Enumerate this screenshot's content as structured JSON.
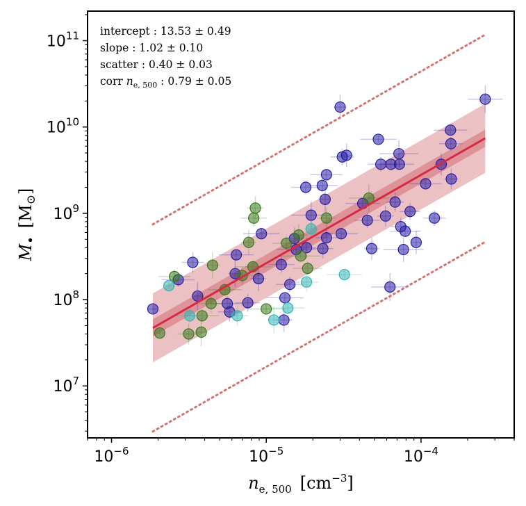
{
  "chart_data": {
    "type": "scatter",
    "x_scale": "log",
    "y_scale": "log",
    "xlim": [
      7e-07,
      0.0004
    ],
    "ylim": [
      2500000.0,
      220000000000.0
    ],
    "xlabel": {
      "symbol": "n",
      "sub": "e, 500",
      "unit_pre": "[cm",
      "unit_exp": "−3",
      "unit_post": "]"
    },
    "ylabel": {
      "symbol": "M",
      "sub": "•",
      "unit_pre": "[M",
      "unit_sub": "⊙",
      "unit_post": "]"
    },
    "xticks": [
      {
        "value": 1e-06,
        "base": "10",
        "exp": "−6"
      },
      {
        "value": 1e-05,
        "base": "10",
        "exp": "−5"
      },
      {
        "value": 0.0001,
        "base": "10",
        "exp": "−4"
      }
    ],
    "yticks": [
      {
        "value": 10000000.0,
        "base": "10",
        "exp": "7"
      },
      {
        "value": 100000000.0,
        "base": "10",
        "exp": "8"
      },
      {
        "value": 1000000000.0,
        "base": "10",
        "exp": "9"
      },
      {
        "value": 10000000000.0,
        "base": "10",
        "exp": "10"
      },
      {
        "value": 100000000000.0,
        "base": "10",
        "exp": "11"
      }
    ],
    "annotations": [
      {
        "label": "intercept",
        "value": "13.53 ± 0.49"
      },
      {
        "label": "slope",
        "value": "1.02 ± 0.10"
      },
      {
        "label": "scatter",
        "value": "0.40 ± 0.03"
      },
      {
        "label": "corr n",
        "sub": "e, 500",
        "value": "0.79 ± 0.05"
      }
    ],
    "fit": {
      "x_range": [
        1.85e-06,
        0.00026
      ],
      "y_start": 47000000.0,
      "y_end": 7400000000.0,
      "inner_band_dex": 0.1,
      "outer_band_dex": 0.4,
      "outer_lines_dex": 1.2,
      "line_color": "#d62a43",
      "band_color": "#cc5c63",
      "dotted_color": "#d4726f"
    },
    "series": [
      {
        "name": "blue",
        "color": "#2a1fa6",
        "points": [
          [
            1.85e-06,
            78000000.0
          ],
          [
            2.7e-06,
            170000000.0
          ],
          [
            3.35e-06,
            270000000.0
          ],
          [
            3.6e-06,
            110000000.0
          ],
          [
            5.6e-06,
            90000000.0
          ],
          [
            5.8e-06,
            72000000.0
          ],
          [
            6.3e-06,
            200000000.0
          ],
          [
            6.4e-06,
            330000000.0
          ],
          [
            7.6e-06,
            92000000.0
          ],
          [
            8.9e-06,
            175000000.0
          ],
          [
            9.3e-06,
            580000000.0
          ],
          [
            1.25e-05,
            255000000.0
          ],
          [
            1.3e-05,
            58000000.0
          ],
          [
            1.32e-05,
            105000000.0
          ],
          [
            1.42e-05,
            150000000.0
          ],
          [
            1.52e-05,
            510000000.0
          ],
          [
            1.56e-05,
            380000000.0
          ],
          [
            1.8e-05,
            2000000000.0
          ],
          [
            1.82e-05,
            400000000.0
          ],
          [
            1.95e-05,
            950000000.0
          ],
          [
            2.3e-05,
            2100000000.0
          ],
          [
            2.32e-05,
            390000000.0
          ],
          [
            2.4e-05,
            1450000000.0
          ],
          [
            2.45e-05,
            2800000000.0
          ],
          [
            2.45e-05,
            520000000.0
          ],
          [
            3e-05,
            17000000000.0
          ],
          [
            3.05e-05,
            580000000.0
          ],
          [
            3.1e-05,
            4500000000.0
          ],
          [
            3.3e-05,
            4700000000.0
          ],
          [
            4.2e-05,
            1300000000.0
          ],
          [
            4.5e-05,
            830000000.0
          ],
          [
            4.8e-05,
            390000000.0
          ],
          [
            5.3e-05,
            7200000000.0
          ],
          [
            5.5e-05,
            3700000000.0
          ],
          [
            5.9e-05,
            930000000.0
          ],
          [
            6.3e-05,
            140000000.0
          ],
          [
            6.4e-05,
            3700000000.0
          ],
          [
            6.8e-05,
            1350000000.0
          ],
          [
            7.2e-05,
            4900000000.0
          ],
          [
            7.25e-05,
            3700000000.0
          ],
          [
            7.4e-05,
            700000000.0
          ],
          [
            7.7e-05,
            380000000.0
          ],
          [
            7.9e-05,
            620000000.0
          ],
          [
            8.5e-05,
            1050000000.0
          ],
          [
            9.3e-05,
            460000000.0
          ],
          [
            0.000107,
            2200000000.0
          ],
          [
            0.000122,
            880000000.0
          ],
          [
            0.000135,
            3700000000.0
          ],
          [
            0.000155,
            9200000000.0
          ],
          [
            0.000156,
            6400000000.0
          ],
          [
            0.000157,
            2500000000.0
          ],
          [
            0.00026,
            21000000000.0
          ]
        ]
      },
      {
        "name": "green",
        "color": "#3a7a1e",
        "points": [
          [
            2.05e-06,
            41000000.0
          ],
          [
            2.55e-06,
            185000000.0
          ],
          [
            3.15e-06,
            40000000.0
          ],
          [
            3.8e-06,
            42000000.0
          ],
          [
            3.85e-06,
            65000000.0
          ],
          [
            4.4e-06,
            90000000.0
          ],
          [
            4.5e-06,
            250000000.0
          ],
          [
            5.4e-06,
            130000000.0
          ],
          [
            7e-06,
            190000000.0
          ],
          [
            7.7e-06,
            460000000.0
          ],
          [
            8.2e-06,
            240000000.0
          ],
          [
            8.3e-06,
            880000000.0
          ],
          [
            8.5e-06,
            1150000000.0
          ],
          [
            1e-05,
            78000000.0
          ],
          [
            1.35e-05,
            450000000.0
          ],
          [
            1.62e-05,
            560000000.0
          ],
          [
            1.67e-05,
            320000000.0
          ],
          [
            1.85e-05,
            230000000.0
          ],
          [
            2.45e-05,
            880000000.0
          ],
          [
            4.6e-05,
            1500000000.0
          ]
        ]
      },
      {
        "name": "cyan",
        "color": "#33b5b3",
        "points": [
          [
            2.35e-06,
            145000000.0
          ],
          [
            3.2e-06,
            65000000.0
          ],
          [
            6.5e-06,
            65000000.0
          ],
          [
            1.12e-05,
            58000000.0
          ],
          [
            1.38e-05,
            80000000.0
          ],
          [
            1.82e-05,
            160000000.0
          ],
          [
            1.95e-05,
            660000000.0
          ],
          [
            3.2e-05,
            195000000.0
          ]
        ]
      }
    ]
  }
}
